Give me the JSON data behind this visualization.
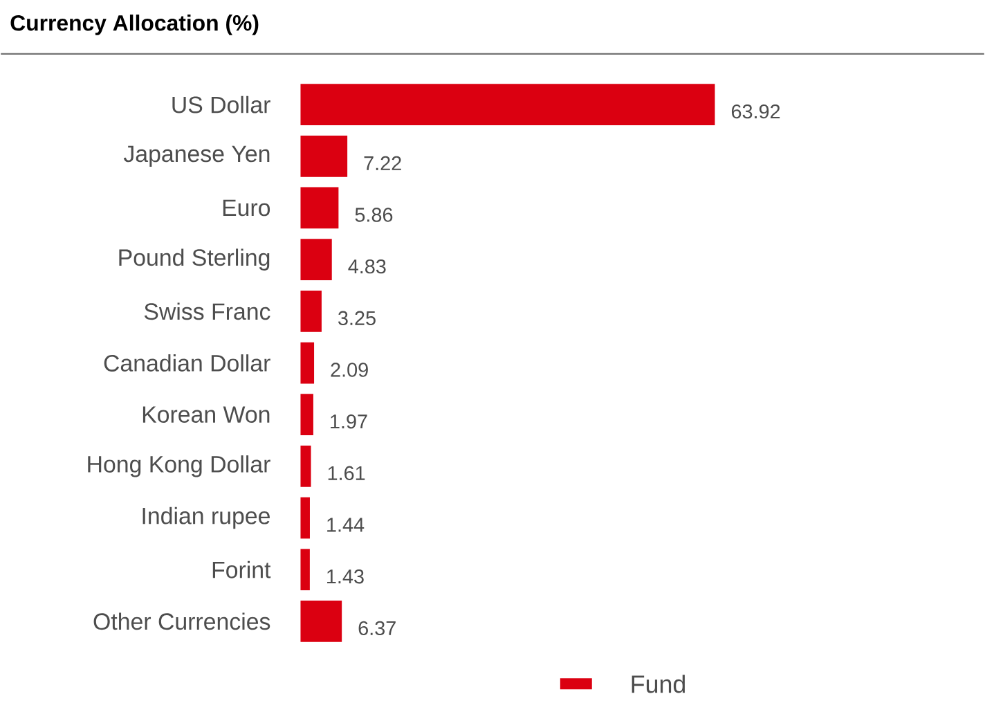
{
  "chart_data": {
    "type": "bar",
    "orientation": "horizontal",
    "title": "Currency Allocation (%)",
    "categories": [
      "US Dollar",
      "Japanese Yen",
      "Euro",
      "Pound Sterling",
      "Swiss Franc",
      "Canadian Dollar",
      "Korean Won",
      "Hong Kong Dollar",
      "Indian rupee",
      "Forint",
      "Other Currencies"
    ],
    "series": [
      {
        "name": "Fund",
        "color": "#db0011",
        "values": [
          63.92,
          7.22,
          5.86,
          4.83,
          3.25,
          2.09,
          1.97,
          1.61,
          1.44,
          1.43,
          6.37
        ]
      }
    ],
    "data_labels": true,
    "legend": "bottom",
    "grid": false
  }
}
